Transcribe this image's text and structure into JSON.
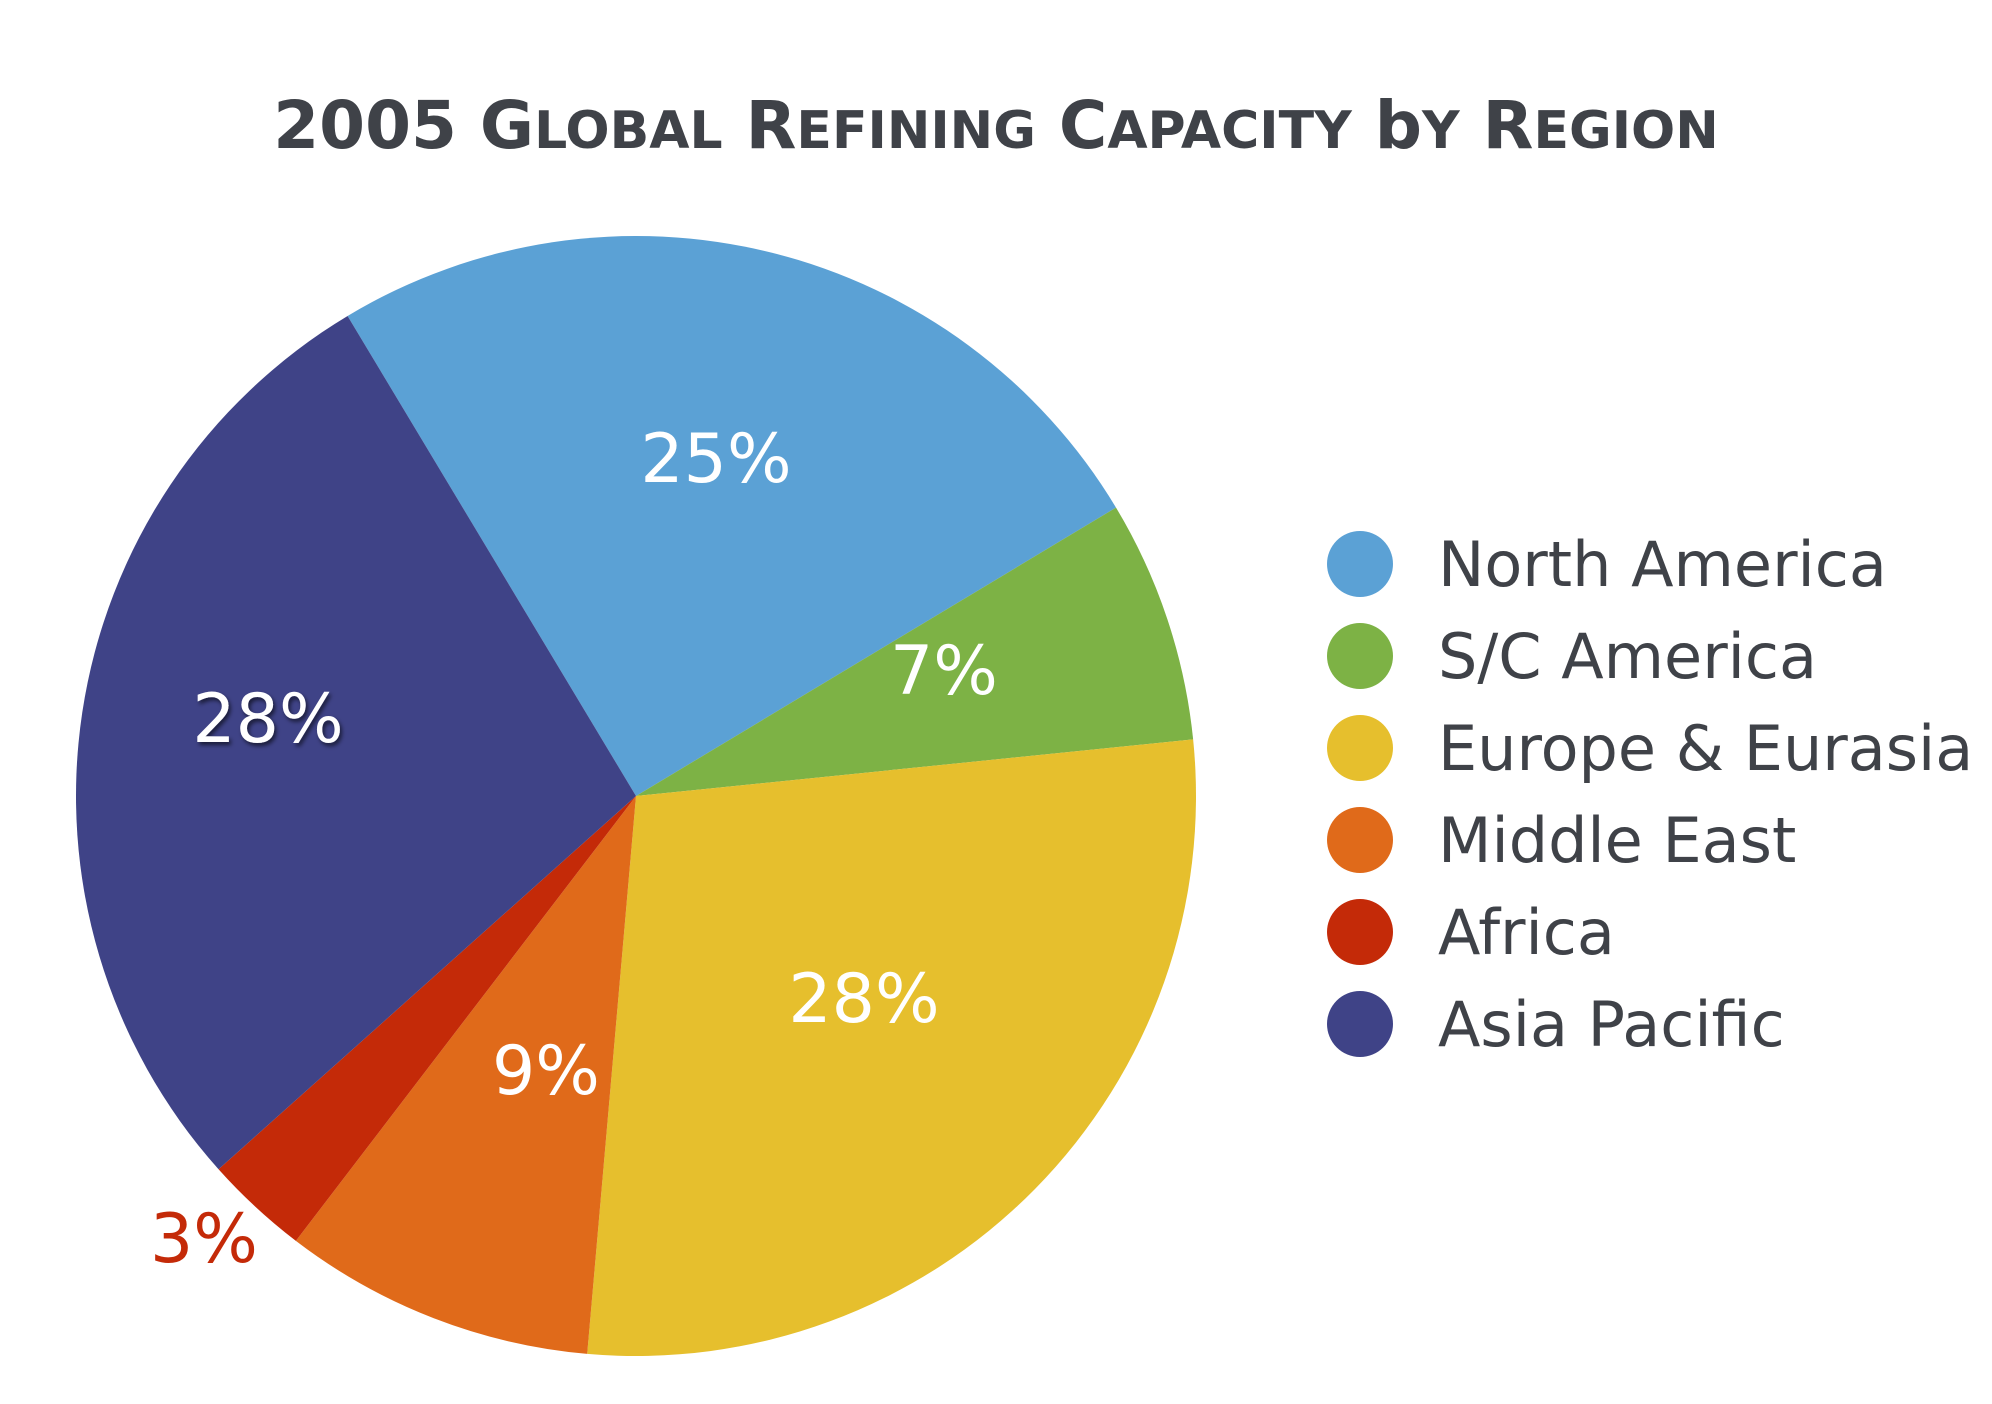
{
  "chart_data": {
    "type": "pie",
    "title": "2005 Global Refining Capacity by Region",
    "categories": [
      "North America",
      "S/C America",
      "Europe & Eurasia",
      "Middle East",
      "Africa",
      "Asia Pacific"
    ],
    "values": [
      25,
      7,
      28,
      9,
      3,
      28
    ],
    "value_labels": [
      "25%",
      "7%",
      "28%",
      "9%",
      "3%",
      "28%"
    ],
    "colors": [
      "#5ba1d5",
      "#7db245",
      "#e6bf2d",
      "#e06a1a",
      "#c42a08",
      "#3f4387"
    ],
    "label_colors": [
      "#ffffff",
      "#ffffff",
      "#ffffff",
      "#ffffff",
      "#c42a08",
      "#ffffff"
    ],
    "start_angle_deg_clockwise_from_12": -31,
    "legend_position": "right"
  }
}
